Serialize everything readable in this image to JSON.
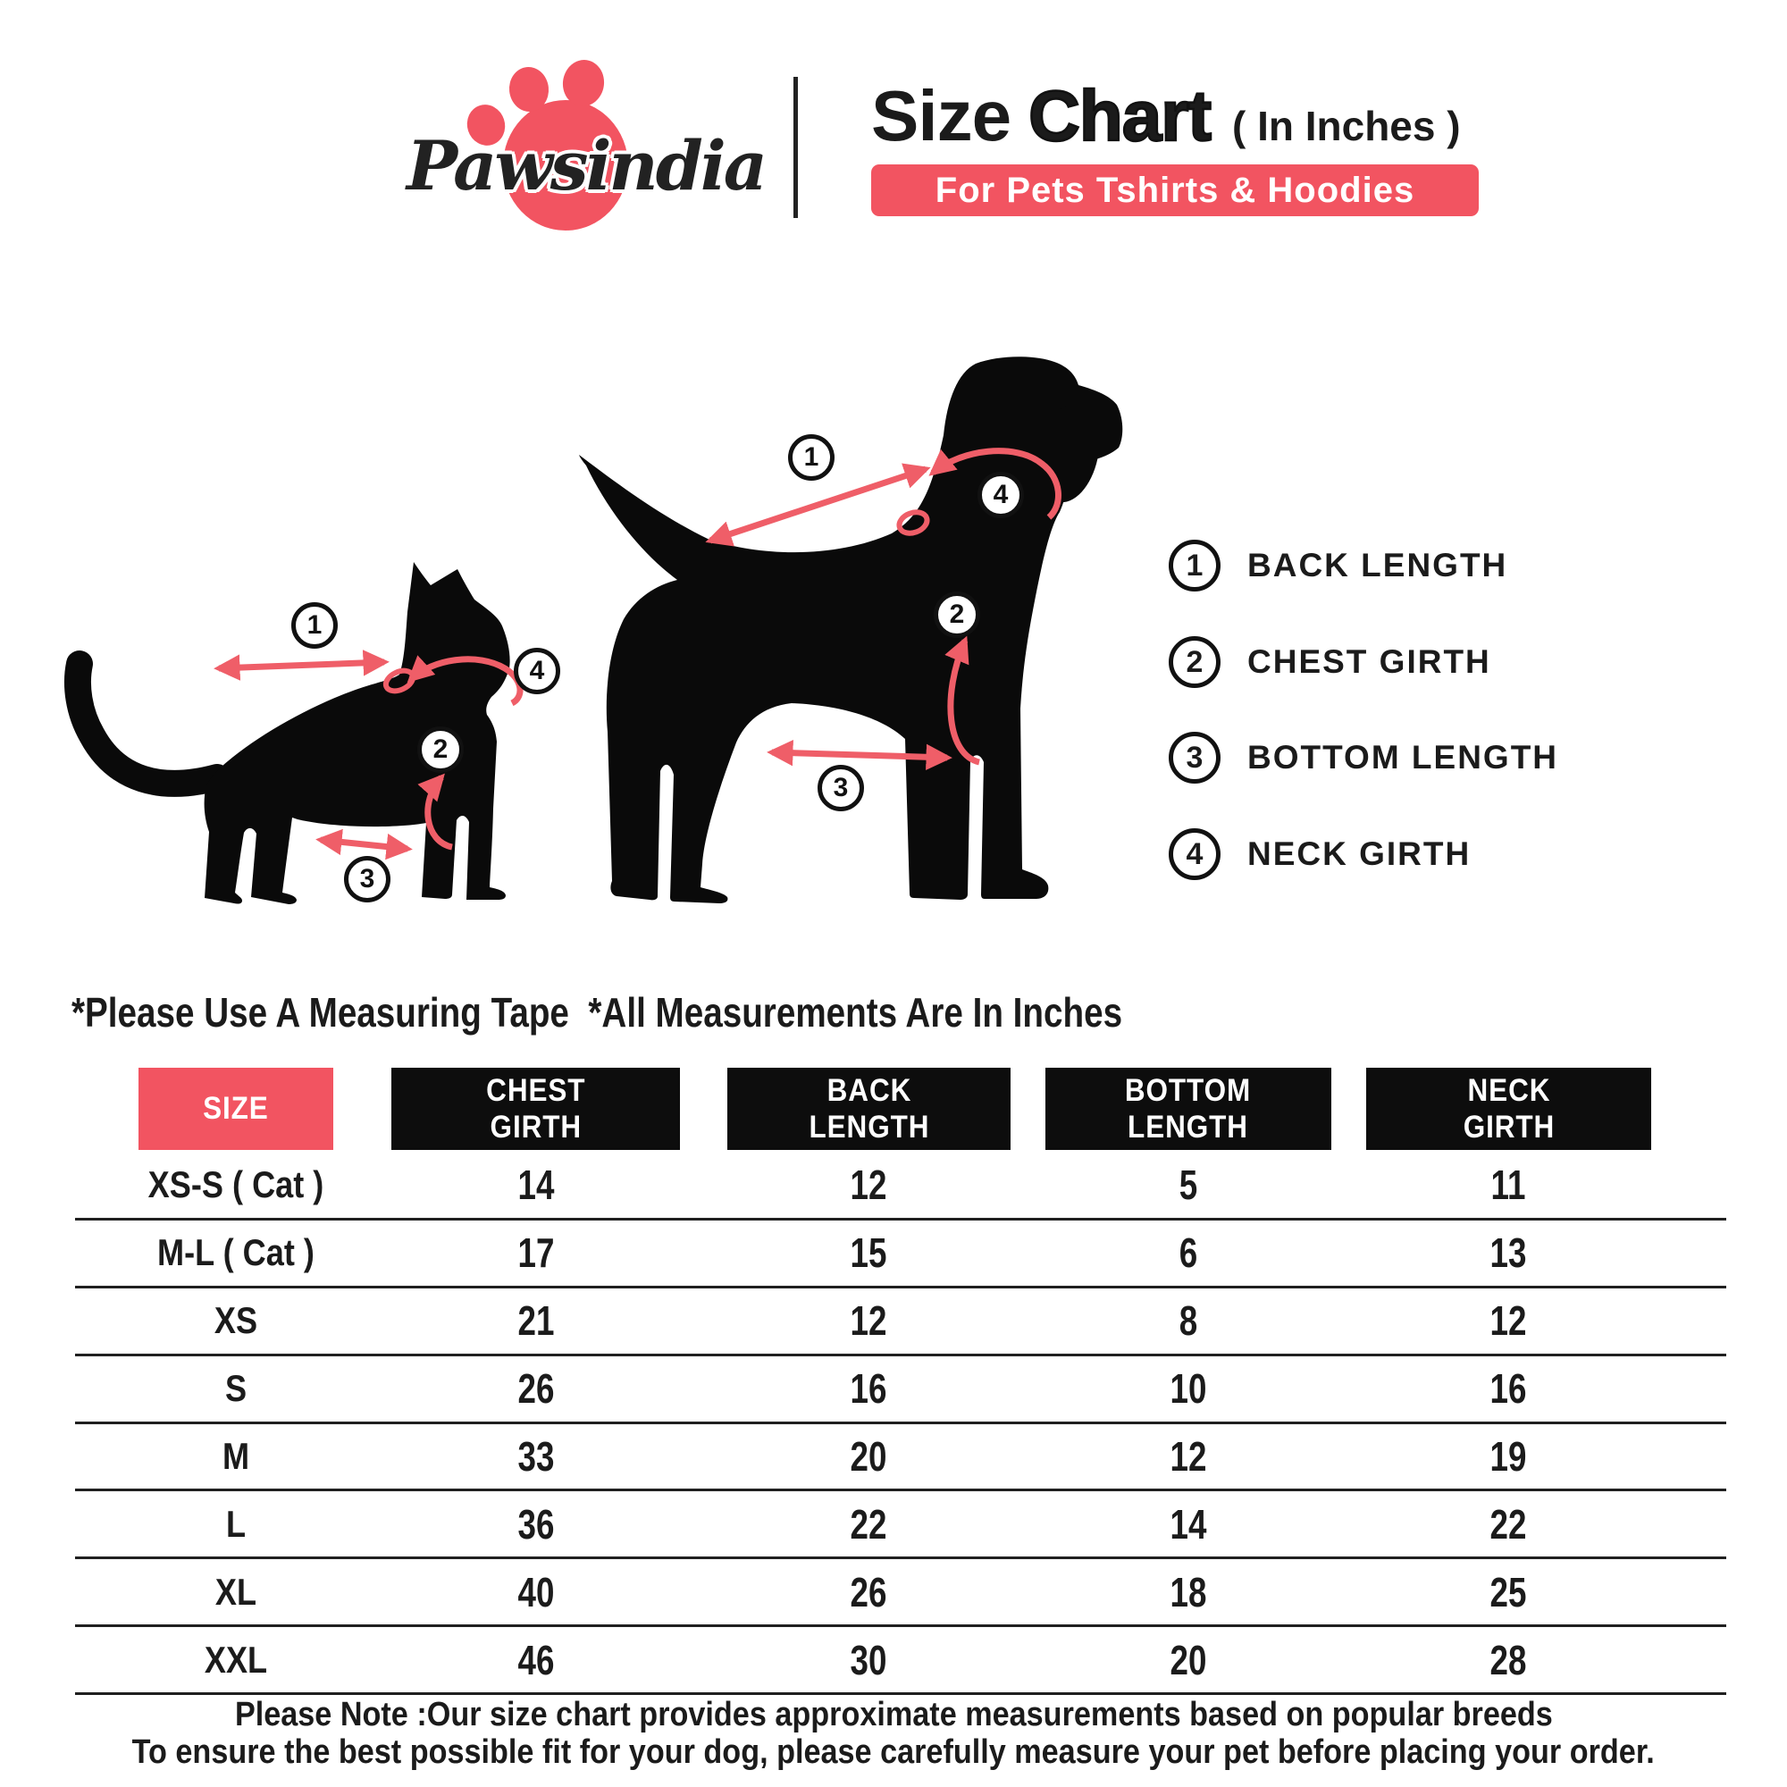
{
  "brand": {
    "wordmark": "Pawsindia"
  },
  "header": {
    "title_regular": "Size",
    "title_bold": "Chart",
    "title_note": "( In Inches )",
    "banner": "For Pets Tshirts & Hoodies"
  },
  "colors": {
    "red": "#f25461",
    "arrow_red": "#ef5e68",
    "ink": "#1b1b1b",
    "silhouette": "#0a0a0a"
  },
  "measurements_note": "*Please Use A Measuring Tape  *All Measurements Are In Inches",
  "legend": [
    {
      "num": "1",
      "label": "BACK LENGTH"
    },
    {
      "num": "2",
      "label": "CHEST GIRTH"
    },
    {
      "num": "3",
      "label": "BOTTOM LENGTH"
    },
    {
      "num": "4",
      "label": "NECK GIRTH"
    }
  ],
  "table": {
    "columns": [
      "SIZE",
      "CHEST\nGIRTH",
      "BACK\nLENGTH",
      "BOTTOM\nLENGTH",
      "NECK\nGIRTH"
    ],
    "rows": [
      [
        "XS-S ( Cat )",
        "14",
        "12",
        "5",
        "11"
      ],
      [
        "M-L ( Cat )",
        "17",
        "15",
        "6",
        "13"
      ],
      [
        "XS",
        "21",
        "12",
        "8",
        "12"
      ],
      [
        "S",
        "26",
        "16",
        "10",
        "16"
      ],
      [
        "M",
        "33",
        "20",
        "12",
        "19"
      ],
      [
        "L",
        "36",
        "22",
        "14",
        "22"
      ],
      [
        "XL",
        "40",
        "26",
        "18",
        "25"
      ],
      [
        "XXL",
        "46",
        "30",
        "20",
        "28"
      ]
    ]
  },
  "footer": {
    "line1": "Please Note :Our size chart provides approximate measurements based on popular breeds",
    "line2": "To ensure the best possible fit for your dog, please carefully measure your pet before placing your order."
  }
}
